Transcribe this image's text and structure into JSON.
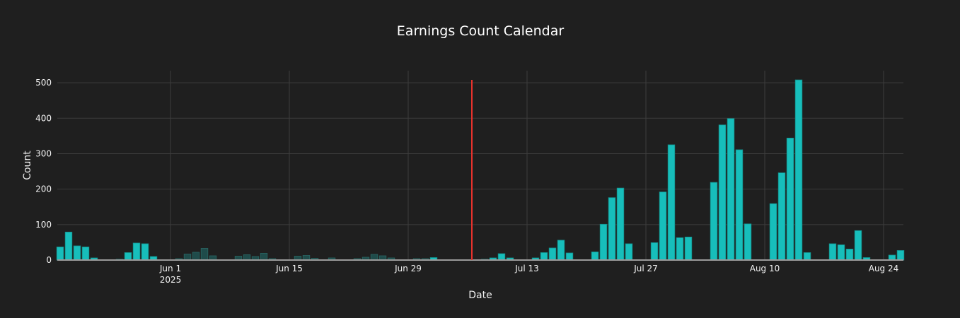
{
  "chart_data": {
    "type": "bar",
    "title": "Earnings Count Calendar",
    "xlabel": "Date",
    "ylabel": "Count",
    "ylim": [
      0,
      534
    ],
    "xlim": [
      "2025-05-18T16:00",
      "2025-08-26T08:00"
    ],
    "grid": true,
    "yticks": [
      0,
      100,
      200,
      300,
      400,
      500
    ],
    "xticks": [
      {
        "date": "2025-06-01",
        "label": "Jun 1",
        "sublabel": "2025"
      },
      {
        "date": "2025-06-15",
        "label": "Jun 15"
      },
      {
        "date": "2025-06-29",
        "label": "Jun 29"
      },
      {
        "date": "2025-07-13",
        "label": "Jul 13"
      },
      {
        "date": "2025-07-27",
        "label": "Jul 27"
      },
      {
        "date": "2025-08-10",
        "label": "Aug 10"
      },
      {
        "date": "2025-08-24",
        "label": "Aug 24"
      }
    ],
    "marker_line": {
      "date": "2025-07-07",
      "color": "#e8322c"
    },
    "colors": {
      "bar": "#17bebb",
      "bar_dimmed": "#1f4b4a",
      "bar_dimmed_edge": "#2a6663"
    },
    "bars": [
      {
        "date": "2025-05-19",
        "value": 37
      },
      {
        "date": "2025-05-20",
        "value": 79
      },
      {
        "date": "2025-05-21",
        "value": 40
      },
      {
        "date": "2025-05-22",
        "value": 37
      },
      {
        "date": "2025-05-23",
        "value": 6
      },
      {
        "date": "2025-05-26",
        "value": 2
      },
      {
        "date": "2025-05-27",
        "value": 21
      },
      {
        "date": "2025-05-28",
        "value": 48
      },
      {
        "date": "2025-05-29",
        "value": 46
      },
      {
        "date": "2025-05-30",
        "value": 10
      },
      {
        "date": "2025-06-02",
        "value": 4,
        "dimmed": true
      },
      {
        "date": "2025-06-03",
        "value": 17,
        "dimmed": true
      },
      {
        "date": "2025-06-04",
        "value": 22,
        "dimmed": true
      },
      {
        "date": "2025-06-05",
        "value": 33,
        "dimmed": true
      },
      {
        "date": "2025-06-06",
        "value": 12,
        "dimmed": true
      },
      {
        "date": "2025-06-09",
        "value": 11,
        "dimmed": true
      },
      {
        "date": "2025-06-10",
        "value": 15,
        "dimmed": true
      },
      {
        "date": "2025-06-11",
        "value": 10,
        "dimmed": true
      },
      {
        "date": "2025-06-12",
        "value": 19,
        "dimmed": true
      },
      {
        "date": "2025-06-13",
        "value": 4,
        "dimmed": true
      },
      {
        "date": "2025-06-16",
        "value": 11,
        "dimmed": true
      },
      {
        "date": "2025-06-17",
        "value": 13,
        "dimmed": true
      },
      {
        "date": "2025-06-18",
        "value": 5,
        "dimmed": true
      },
      {
        "date": "2025-06-19",
        "value": 1,
        "dimmed": true
      },
      {
        "date": "2025-06-20",
        "value": 6,
        "dimmed": true
      },
      {
        "date": "2025-06-23",
        "value": 4,
        "dimmed": true
      },
      {
        "date": "2025-06-24",
        "value": 8,
        "dimmed": true
      },
      {
        "date": "2025-06-25",
        "value": 16,
        "dimmed": true
      },
      {
        "date": "2025-06-26",
        "value": 12,
        "dimmed": true
      },
      {
        "date": "2025-06-27",
        "value": 6,
        "dimmed": true
      },
      {
        "date": "2025-06-30",
        "value": 4,
        "dimmed": true
      },
      {
        "date": "2025-07-01",
        "value": 4,
        "dimmed": true
      },
      {
        "date": "2025-07-02",
        "value": 7
      },
      {
        "date": "2025-07-07",
        "value": 1
      },
      {
        "date": "2025-07-08",
        "value": 2
      },
      {
        "date": "2025-07-09",
        "value": 6
      },
      {
        "date": "2025-07-10",
        "value": 18
      },
      {
        "date": "2025-07-11",
        "value": 6
      },
      {
        "date": "2025-07-14",
        "value": 6
      },
      {
        "date": "2025-07-15",
        "value": 21
      },
      {
        "date": "2025-07-16",
        "value": 34
      },
      {
        "date": "2025-07-17",
        "value": 56
      },
      {
        "date": "2025-07-18",
        "value": 20
      },
      {
        "date": "2025-07-21",
        "value": 23
      },
      {
        "date": "2025-07-22",
        "value": 101
      },
      {
        "date": "2025-07-23",
        "value": 176
      },
      {
        "date": "2025-07-24",
        "value": 203
      },
      {
        "date": "2025-07-25",
        "value": 46
      },
      {
        "date": "2025-07-28",
        "value": 49
      },
      {
        "date": "2025-07-29",
        "value": 192
      },
      {
        "date": "2025-07-30",
        "value": 325
      },
      {
        "date": "2025-07-31",
        "value": 63
      },
      {
        "date": "2025-08-01",
        "value": 65
      },
      {
        "date": "2025-08-04",
        "value": 219
      },
      {
        "date": "2025-08-05",
        "value": 381
      },
      {
        "date": "2025-08-06",
        "value": 399
      },
      {
        "date": "2025-08-07",
        "value": 311
      },
      {
        "date": "2025-08-08",
        "value": 102
      },
      {
        "date": "2025-08-11",
        "value": 159
      },
      {
        "date": "2025-08-12",
        "value": 246
      },
      {
        "date": "2025-08-13",
        "value": 344
      },
      {
        "date": "2025-08-14",
        "value": 508
      },
      {
        "date": "2025-08-15",
        "value": 21
      },
      {
        "date": "2025-08-18",
        "value": 46
      },
      {
        "date": "2025-08-19",
        "value": 43
      },
      {
        "date": "2025-08-20",
        "value": 31
      },
      {
        "date": "2025-08-21",
        "value": 83
      },
      {
        "date": "2025-08-22",
        "value": 7
      },
      {
        "date": "2025-08-25",
        "value": 14
      },
      {
        "date": "2025-08-26",
        "value": 27
      }
    ]
  }
}
